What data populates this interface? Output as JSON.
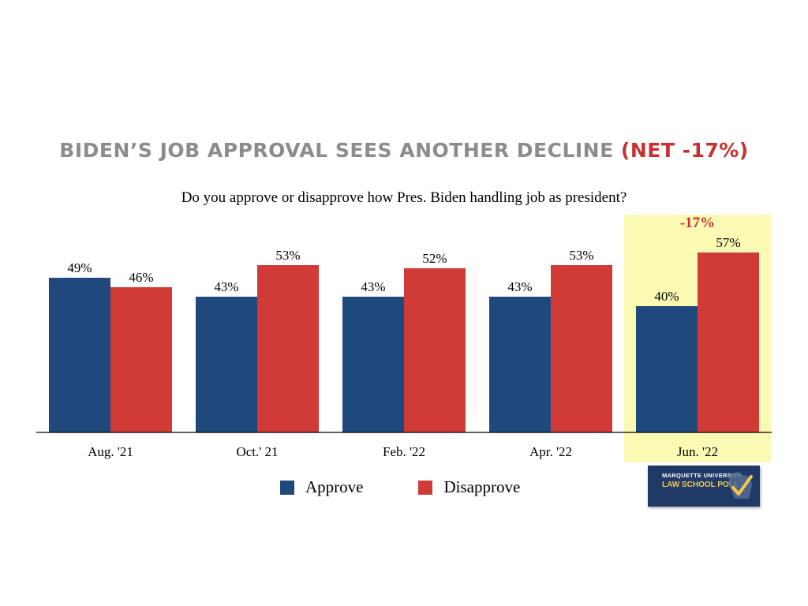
{
  "title": {
    "main": "BIDEN’S JOB APPROVAL SEES ANOTHER DECLINE ",
    "accent": "(NET -17%)"
  },
  "subtitle": "Do you approve or disapprove how Pres. Biden handling job as president?",
  "chart_data": {
    "type": "bar",
    "title": "BIDEN’S JOB APPROVAL SEES ANOTHER DECLINE (NET -17%)",
    "subtitle": "Do you approve or disapprove how Pres. Biden handling job as president?",
    "categories": [
      "Aug. '21",
      "Oct.' 21",
      "Feb. '22",
      "Apr. '22",
      "Jun. '22"
    ],
    "series": [
      {
        "name": "Approve",
        "values": [
          49,
          43,
          43,
          43,
          40
        ],
        "labels": [
          "49%",
          "43%",
          "43%",
          "43%",
          "40%"
        ],
        "color": "#1f497d"
      },
      {
        "name": "Disapprove",
        "values": [
          46,
          53,
          52,
          53,
          57
        ],
        "labels": [
          "46%",
          "53%",
          "52%",
          "53%",
          "57%"
        ],
        "color": "#d13b37"
      }
    ],
    "ylim": [
      0,
      65
    ],
    "highlight": {
      "category": "Jun. '22",
      "label": "-17%",
      "color": "#fafab4",
      "label_color": "#c8312f"
    },
    "grid": false,
    "legend": "bottom"
  },
  "legend": {
    "approve": "Approve",
    "disapprove": "Disapprove"
  },
  "logo": {
    "line1": "MARQUETTE UNIVERSITY",
    "line2": "LAW SCHOOL POLL"
  }
}
